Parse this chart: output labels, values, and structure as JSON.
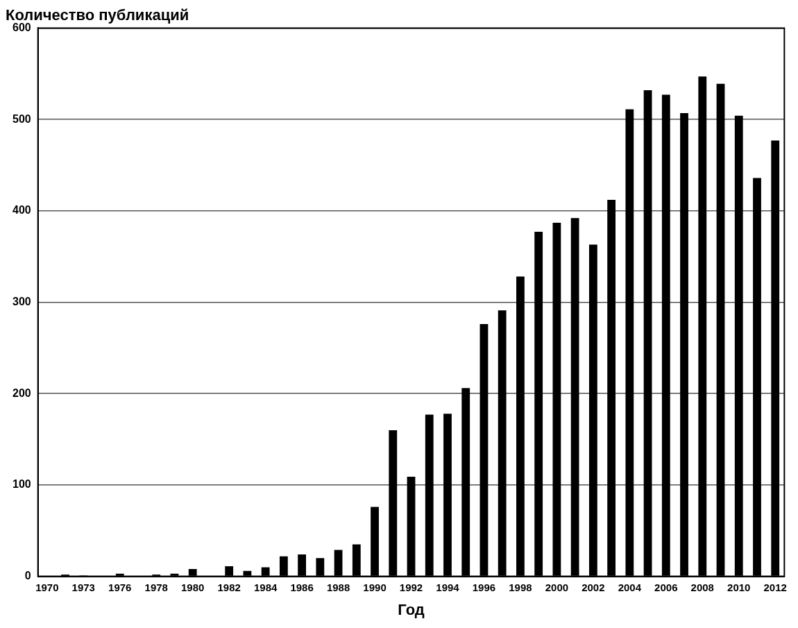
{
  "chart_data": {
    "type": "bar",
    "title": "Количество публикаций",
    "xlabel": "Год",
    "categories": [
      "1970",
      null,
      "1973",
      null,
      "1976",
      null,
      "1978",
      null,
      "1980",
      null,
      "1982",
      null,
      "1984",
      null,
      "1986",
      null,
      "1988",
      null,
      "1990",
      null,
      "1992",
      null,
      "1994",
      null,
      "1996",
      null,
      "1998",
      null,
      "2000",
      null,
      "2002",
      null,
      "2004",
      null,
      "2006",
      null,
      "2008",
      null,
      "2010",
      null,
      "2012"
    ],
    "values": [
      0,
      2,
      1,
      0,
      3,
      0,
      2,
      3,
      8,
      0,
      11,
      6,
      10,
      22,
      24,
      20,
      29,
      35,
      76,
      160,
      109,
      177,
      178,
      206,
      276,
      291,
      328,
      377,
      387,
      392,
      363,
      412,
      511,
      532,
      527,
      507,
      547,
      539,
      504,
      436,
      477
    ],
    "color": "#000000",
    "ylim": [
      0,
      600
    ],
    "yticks": [
      0,
      100,
      200,
      300,
      400,
      500,
      600
    ],
    "grid": "y",
    "legend": false
  }
}
